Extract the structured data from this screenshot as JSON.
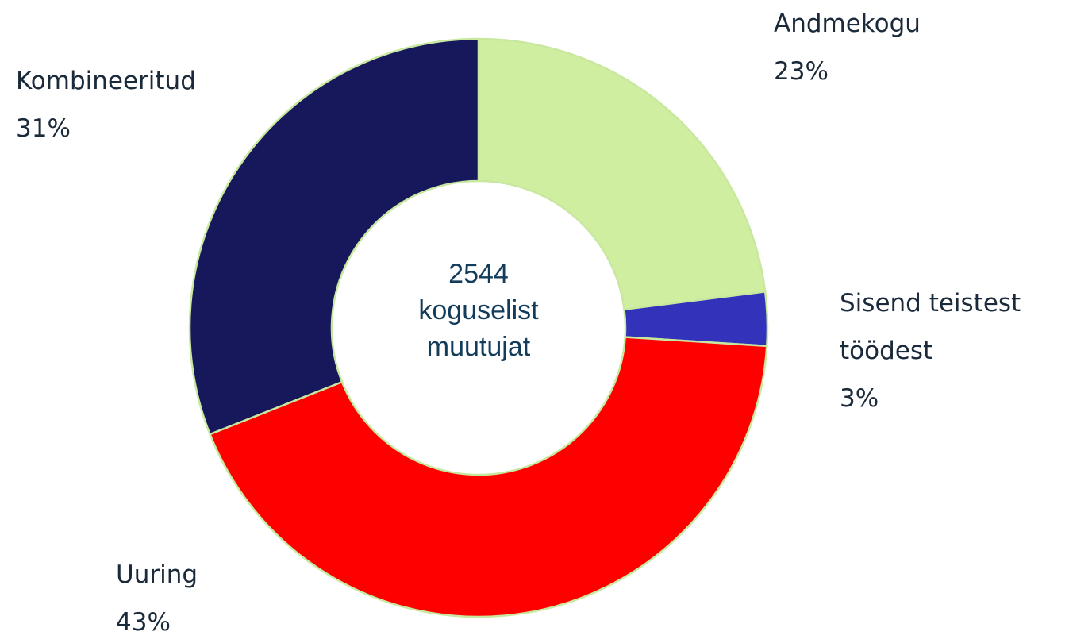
{
  "chart_data": {
    "type": "donut",
    "categories": [
      "Andmekogu",
      "Sisend teistest töödest",
      "Uuring",
      "Kombineeritud"
    ],
    "values": [
      23,
      3,
      43,
      31
    ],
    "value_labels": [
      "23%",
      "3%",
      "43%",
      "31%"
    ],
    "colors": [
      "#d0eea0",
      "#3232bb",
      "#ff0000",
      "#17185c"
    ],
    "center_text": "2544 koguselist muutujat"
  }
}
